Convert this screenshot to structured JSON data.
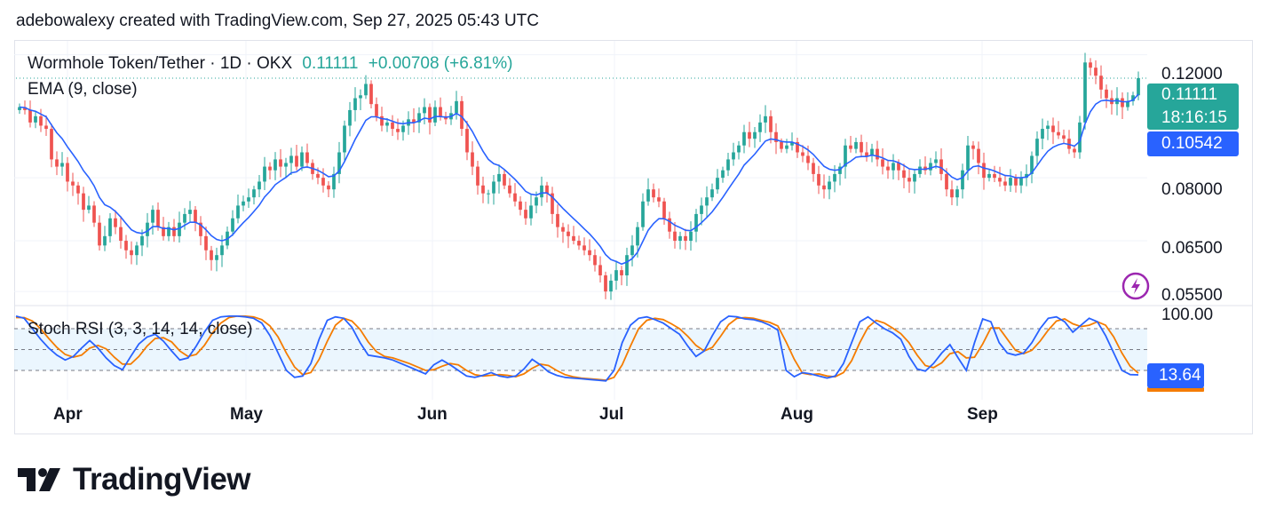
{
  "caption": "adebowalexy created with TradingView.com, Sep 27, 2025 05:43 UTC",
  "legend": {
    "symbol": "Wormhole Token/Tether · 1D · OKX",
    "price": "0.11111",
    "change": "+0.00708 (+6.81%)",
    "ema": "EMA (9, close)",
    "stoch": "Stoch RSI (3, 3, 14, 14, close)"
  },
  "price_axis": {
    "labels": [
      "0.12000",
      "0.08000",
      "0.06500",
      "0.05500"
    ]
  },
  "stoch_axis": {
    "labels": [
      "100.00"
    ]
  },
  "tags": {
    "last_price": "0.11111",
    "countdown": "18:16:15",
    "ema_value": "0.10542",
    "stoch_value": "13.64"
  },
  "time_axis": {
    "labels": [
      "Apr",
      "May",
      "Jun",
      "Jul",
      "Aug",
      "Sep"
    ]
  },
  "brand": {
    "name": "TradingView"
  },
  "colors": {
    "up": "#26a69a",
    "down": "#ef5350",
    "ema": "#2962ff",
    "stoch_k": "#2962ff",
    "stoch_d": "#f57c00"
  },
  "chart_data": {
    "type": "candlestick",
    "title": "Wormhole Token/Tether · 1D · OKX",
    "y_scale": "log",
    "ylim": [
      0.0525,
      0.126
    ],
    "y_ticks": [
      0.12,
      0.08,
      0.065,
      0.055
    ],
    "x_ticks": [
      "Apr",
      "May",
      "Jun",
      "Jul",
      "Aug",
      "Sep"
    ],
    "closes": [
      0.101,
      0.1,
      0.096,
      0.098,
      0.095,
      0.094,
      0.085,
      0.083,
      0.084,
      0.079,
      0.078,
      0.076,
      0.072,
      0.073,
      0.069,
      0.064,
      0.066,
      0.07,
      0.068,
      0.065,
      0.063,
      0.062,
      0.064,
      0.066,
      0.069,
      0.072,
      0.068,
      0.066,
      0.068,
      0.066,
      0.069,
      0.071,
      0.072,
      0.069,
      0.066,
      0.063,
      0.061,
      0.062,
      0.064,
      0.067,
      0.07,
      0.073,
      0.074,
      0.075,
      0.077,
      0.079,
      0.083,
      0.082,
      0.085,
      0.083,
      0.084,
      0.086,
      0.083,
      0.087,
      0.084,
      0.081,
      0.08,
      0.078,
      0.077,
      0.081,
      0.087,
      0.095,
      0.1,
      0.104,
      0.105,
      0.109,
      0.102,
      0.098,
      0.095,
      0.096,
      0.094,
      0.093,
      0.095,
      0.097,
      0.096,
      0.099,
      0.101,
      0.096,
      0.101,
      0.098,
      0.097,
      0.099,
      0.103,
      0.094,
      0.087,
      0.083,
      0.078,
      0.076,
      0.076,
      0.079,
      0.081,
      0.078,
      0.076,
      0.074,
      0.072,
      0.07,
      0.073,
      0.075,
      0.078,
      0.076,
      0.071,
      0.068,
      0.067,
      0.066,
      0.065,
      0.064,
      0.063,
      0.062,
      0.06,
      0.058,
      0.055,
      0.057,
      0.059,
      0.058,
      0.062,
      0.064,
      0.068,
      0.074,
      0.077,
      0.075,
      0.074,
      0.07,
      0.067,
      0.065,
      0.066,
      0.065,
      0.067,
      0.071,
      0.073,
      0.075,
      0.077,
      0.08,
      0.082,
      0.085,
      0.087,
      0.089,
      0.093,
      0.091,
      0.093,
      0.096,
      0.098,
      0.093,
      0.09,
      0.088,
      0.089,
      0.09,
      0.087,
      0.086,
      0.084,
      0.081,
      0.078,
      0.077,
      0.079,
      0.081,
      0.083,
      0.089,
      0.088,
      0.09,
      0.087,
      0.086,
      0.088,
      0.085,
      0.083,
      0.082,
      0.084,
      0.082,
      0.08,
      0.079,
      0.081,
      0.083,
      0.082,
      0.084,
      0.085,
      0.081,
      0.077,
      0.075,
      0.077,
      0.082,
      0.089,
      0.088,
      0.084,
      0.08,
      0.081,
      0.08,
      0.079,
      0.078,
      0.08,
      0.078,
      0.08,
      0.081,
      0.086,
      0.091,
      0.094,
      0.095,
      0.093,
      0.092,
      0.091,
      0.088,
      0.087,
      0.096,
      0.117,
      0.115,
      0.112,
      0.107,
      0.104,
      0.102,
      0.104,
      0.101,
      0.103,
      0.105,
      0.1111
    ],
    "ema": [
      0.101,
      0.1008,
      0.1,
      0.0996,
      0.0987,
      0.0978,
      0.0952,
      0.0928,
      0.091,
      0.0886,
      0.0865,
      0.0844,
      0.0819,
      0.0801,
      0.0779,
      0.075,
      0.0732,
      0.0726,
      0.0716,
      0.0703,
      0.0688,
      0.0674,
      0.0668,
      0.0666,
      0.0671,
      0.0681,
      0.0681,
      0.0677,
      0.0677,
      0.0674,
      0.0677,
      0.0684,
      0.0691,
      0.0691,
      0.0685,
      0.0674,
      0.0661,
      0.0653,
      0.065,
      0.0654,
      0.0663,
      0.0677,
      0.069,
      0.0702,
      0.0716,
      0.0731,
      0.0751,
      0.0765,
      0.0782,
      0.0792,
      0.0801,
      0.0813,
      0.0816,
      0.0827,
      0.0829,
      0.0825,
      0.082,
      0.0812,
      0.0803,
      0.0805,
      0.0818,
      0.0844,
      0.0875,
      0.0908,
      0.0937,
      0.0967,
      0.0978,
      0.0978,
      0.0972,
      0.097,
      0.0964,
      0.0958,
      0.0956,
      0.0959,
      0.0959,
      0.0965,
      0.0974,
      0.0971,
      0.0979,
      0.0979,
      0.0977,
      0.0979,
      0.0989,
      0.0979,
      0.0957,
      0.0932,
      0.0901,
      0.0873,
      0.085,
      0.0838,
      0.0833,
      0.0822,
      0.0809,
      0.0796,
      0.0781,
      0.0765,
      0.0758,
      0.0756,
      0.0761,
      0.0761,
      0.0751,
      0.0737,
      0.0723,
      0.0711,
      0.0699,
      0.0688,
      0.0676,
      0.0665,
      0.0652,
      0.0638,
      0.0621,
      0.0611,
      0.0607,
      0.0602,
      0.0606,
      0.0613,
      0.0626,
      0.0649,
      0.0673,
      0.0688,
      0.0699,
      0.0699,
      0.0693,
      0.0684,
      0.0679,
      0.0673,
      0.0672,
      0.068,
      0.069,
      0.0702,
      0.0715,
      0.0732,
      0.075,
      0.077,
      0.079,
      0.081,
      0.0834,
      0.0849,
      0.0865,
      0.0884,
      0.0903,
      0.0909,
      0.0907,
      0.0902,
      0.09,
      0.09,
      0.0894,
      0.0887,
      0.0877,
      0.0864,
      0.0847,
      0.0831,
      0.0823,
      0.082,
      0.0822,
      0.0836,
      0.0845,
      0.0856,
      0.0858,
      0.0858,
      0.0862,
      0.0859,
      0.0854,
      0.0847,
      0.0846,
      0.0841,
      0.0833,
      0.0824,
      0.0822,
      0.0823,
      0.0823,
      0.0826,
      0.0831,
      0.0827,
      0.0815,
      0.0802,
      0.0795,
      0.08,
      0.0818,
      0.083,
      0.0832,
      0.0826,
      0.0823,
      0.0818,
      0.0812,
      0.0806,
      0.0805,
      0.08,
      0.08,
      0.0802,
      0.0813,
      0.0833,
      0.0854,
      0.0873,
      0.0885,
      0.0892,
      0.0896,
      0.0893,
      0.0888,
      0.0902,
      0.0956,
      0.0995,
      0.102,
      0.1031,
      0.1033,
      0.103,
      0.1032,
      0.1028,
      0.1028,
      0.1033,
      0.1054
    ],
    "stoch_k": [
      98,
      95,
      80,
      65,
      52,
      42,
      35,
      40,
      52,
      63,
      52,
      38,
      27,
      21,
      40,
      58,
      68,
      72,
      62,
      48,
      35,
      38,
      55,
      75,
      92,
      97,
      98,
      98,
      97,
      95,
      88,
      70,
      45,
      20,
      10,
      12,
      30,
      65,
      92,
      97,
      95,
      82,
      60,
      42,
      40,
      38,
      35,
      30,
      25,
      20,
      15,
      28,
      35,
      28,
      20,
      12,
      10,
      13,
      17,
      12,
      10,
      12,
      22,
      36,
      28,
      18,
      13,
      10,
      9,
      8,
      7,
      6,
      5,
      20,
      60,
      85,
      95,
      97,
      93,
      88,
      80,
      72,
      55,
      40,
      48,
      70,
      90,
      98,
      97,
      94,
      93,
      90,
      85,
      78,
      20,
      11,
      17,
      15,
      12,
      9,
      12,
      30,
      60,
      90,
      97,
      88,
      80,
      74,
      65,
      40,
      22,
      19,
      30,
      45,
      57,
      38,
      20,
      60,
      94,
      90,
      60,
      45,
      42,
      45,
      60,
      80,
      95,
      97,
      90,
      75,
      85,
      95,
      90,
      70,
      45,
      20,
      14,
      13.64
    ],
    "stoch_d": [
      96,
      96,
      91,
      80,
      66,
      53,
      43,
      39,
      42,
      52,
      56,
      51,
      39,
      29,
      29,
      40,
      55,
      66,
      67,
      61,
      48,
      40,
      43,
      56,
      74,
      88,
      96,
      98,
      98,
      97,
      93,
      84,
      68,
      45,
      25,
      14,
      17,
      36,
      62,
      85,
      95,
      91,
      79,
      61,
      47,
      40,
      38,
      34,
      30,
      25,
      20,
      21,
      26,
      30,
      28,
      20,
      14,
      12,
      13,
      14,
      13,
      11,
      15,
      23,
      29,
      27,
      20,
      14,
      11,
      9,
      8,
      7,
      6,
      10,
      28,
      55,
      80,
      92,
      95,
      93,
      87,
      80,
      69,
      56,
      48,
      53,
      69,
      86,
      95,
      96,
      95,
      92,
      89,
      84,
      61,
      36,
      16,
      14,
      15,
      12,
      11,
      17,
      34,
      60,
      82,
      92,
      88,
      81,
      73,
      60,
      42,
      27,
      24,
      31,
      44,
      47,
      38,
      39,
      58,
      81,
      81,
      65,
      49,
      44,
      49,
      62,
      78,
      91,
      94,
      87,
      83,
      85,
      90,
      85,
      68,
      45,
      26,
      16
    ]
  }
}
